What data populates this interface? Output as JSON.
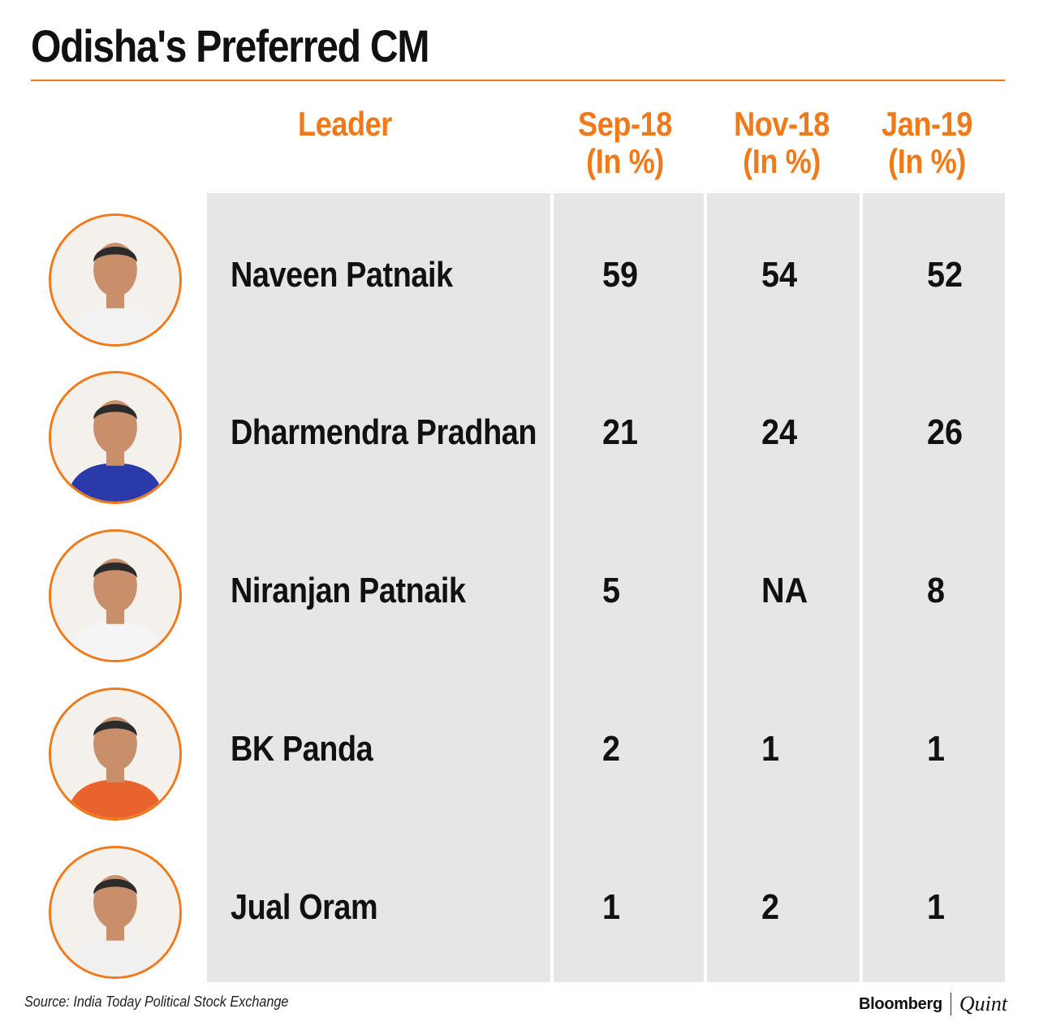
{
  "title": "Odisha's Preferred CM",
  "headers": {
    "leader": "Leader",
    "c1_line1": "Sep-18",
    "c1_line2": "(In %)",
    "c2_line1": "Nov-18",
    "c2_line2": "(In %)",
    "c3_line1": "Jan-19",
    "c3_line2": "(In %)"
  },
  "rows": [
    {
      "name": "Naveen Patnaik",
      "v1": "59",
      "v2": "54",
      "v3": "52",
      "photo": "naveen-patnaik-photo",
      "shirt": "#f2f2f2"
    },
    {
      "name": "Dharmendra Pradhan",
      "v1": "21",
      "v2": "24",
      "v3": "26",
      "photo": "dharmendra-pradhan-photo",
      "shirt": "#2a3aa8"
    },
    {
      "name": "Niranjan Patnaik",
      "v1": "5",
      "v2": "NA",
      "v3": "8",
      "photo": "niranjan-patnaik-photo",
      "shirt": "#f5f5f5"
    },
    {
      "name": "BK Panda",
      "v1": "2",
      "v2": "1",
      "v3": "1",
      "photo": "bk-panda-photo",
      "shirt": "#e8642c"
    },
    {
      "name": "Jual Oram",
      "v1": "1",
      "v2": "2",
      "v3": "1",
      "photo": "jual-oram-photo",
      "shirt": "#f0f0f0"
    }
  ],
  "source": "Source: India Today Political Stock Exchange",
  "brand": {
    "name": "Bloomberg",
    "suffix": "Quint"
  },
  "colors": {
    "accent": "#f07a1a",
    "panel": "#e6e6e6",
    "text": "#111111"
  },
  "chart_data": {
    "type": "table",
    "title": "Odisha's Preferred CM",
    "columns": [
      "Leader",
      "Sep-18 (In %)",
      "Nov-18 (In %)",
      "Jan-19 (In %)"
    ],
    "rows": [
      [
        "Naveen Patnaik",
        59,
        54,
        52
      ],
      [
        "Dharmendra Pradhan",
        21,
        24,
        26
      ],
      [
        "Niranjan Patnaik",
        5,
        "NA",
        8
      ],
      [
        "BK Panda",
        2,
        1,
        1
      ],
      [
        "Jual Oram",
        1,
        2,
        1
      ]
    ]
  }
}
